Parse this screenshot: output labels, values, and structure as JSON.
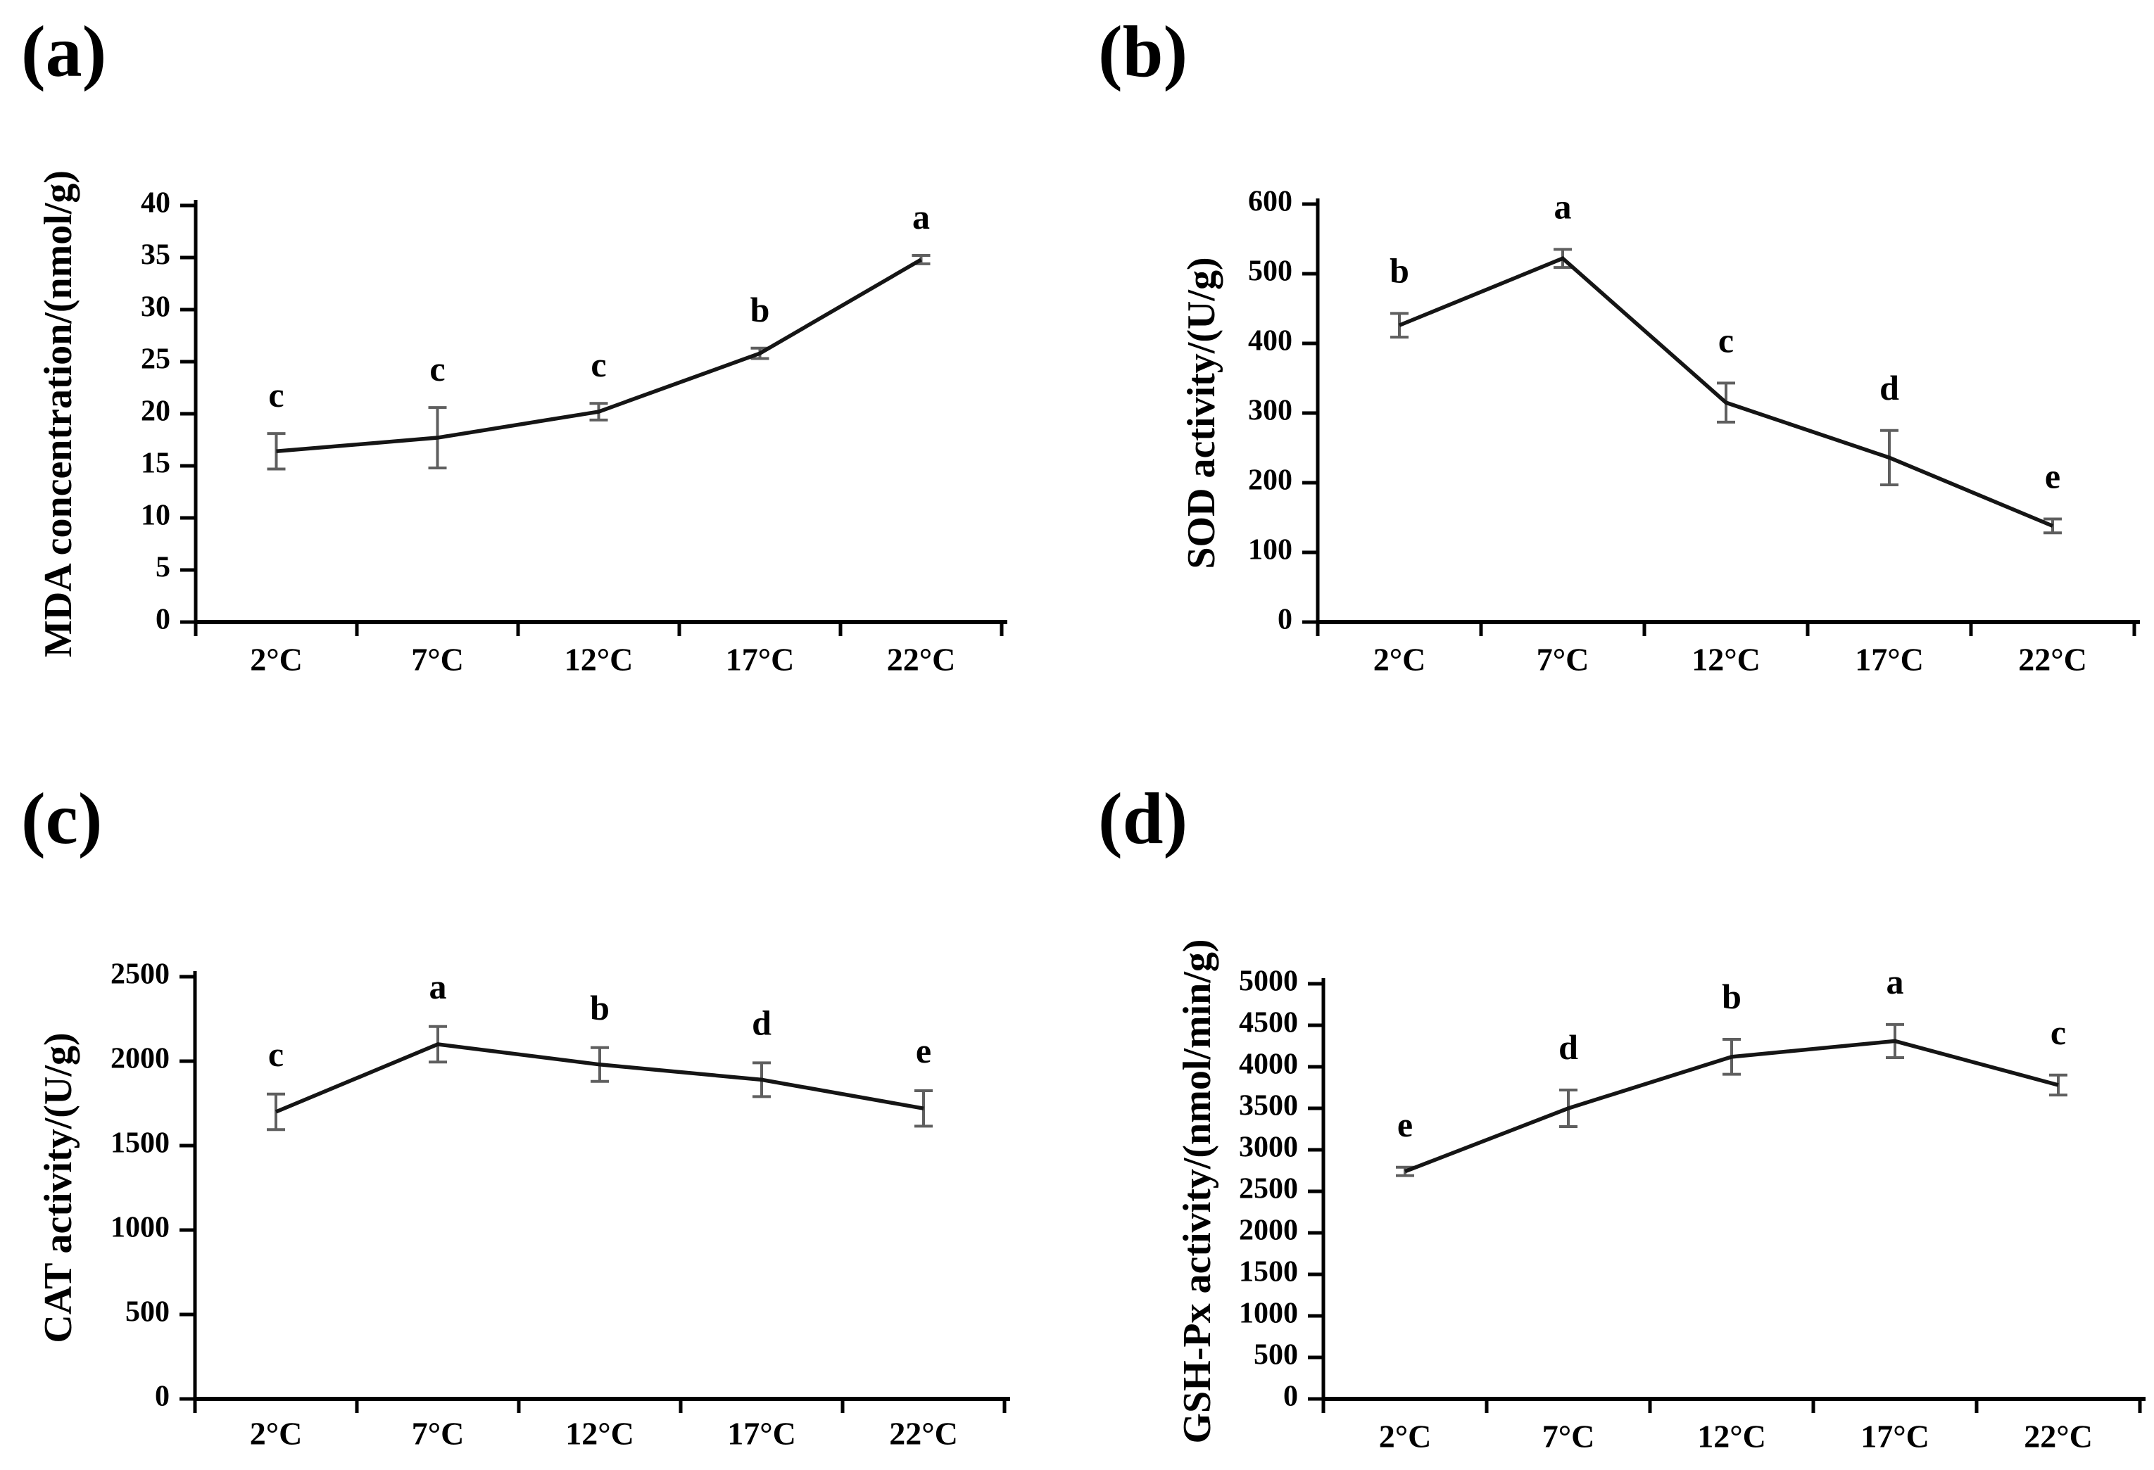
{
  "colors": {
    "background": "#ffffff",
    "axis": "#000000",
    "data_line": "#151515",
    "error_bar": "#5f5f5f",
    "text": "#000000"
  },
  "chart_data": [
    {
      "id": "a",
      "panel_label": "(a)",
      "type": "line",
      "title": "",
      "xlabel": "",
      "ylabel": "MDA concentration/(nmol/g)",
      "categories": [
        "2°C",
        "7°C",
        "12°C",
        "17°C",
        "22°C"
      ],
      "values": [
        16.4,
        17.7,
        20.2,
        25.8,
        34.8
      ],
      "errors": [
        1.7,
        2.9,
        0.8,
        0.5,
        0.4
      ],
      "sig_letters": [
        "c",
        "c",
        "c",
        "b",
        "a"
      ],
      "ylim": [
        0,
        40
      ],
      "ytick_step": 5,
      "yticks": [
        "0",
        "5",
        "10",
        "15",
        "20",
        "25",
        "30",
        "35",
        "40"
      ],
      "grid": "off",
      "legend": "none"
    },
    {
      "id": "b",
      "panel_label": "(b)",
      "type": "line",
      "title": "",
      "xlabel": "",
      "ylabel": "SOD activity/(U/g)",
      "categories": [
        "2°C",
        "7°C",
        "12°C",
        "17°C",
        "22°C"
      ],
      "values": [
        426,
        522,
        315,
        236,
        138
      ],
      "errors": [
        17,
        13,
        28,
        39,
        10
      ],
      "sig_letters": [
        "b",
        "a",
        "c",
        "d",
        "e"
      ],
      "ylim": [
        0,
        600
      ],
      "ytick_step": 100,
      "yticks": [
        "0",
        "100",
        "200",
        "300",
        "400",
        "500",
        "600"
      ],
      "grid": "off",
      "legend": "none"
    },
    {
      "id": "c",
      "panel_label": "(c)",
      "type": "line",
      "title": "",
      "xlabel": "",
      "ylabel": "CAT activity/(U/g)",
      "categories": [
        "2°C",
        "7°C",
        "12°C",
        "17°C",
        "22°C"
      ],
      "values": [
        1700,
        2100,
        1980,
        1890,
        1720
      ],
      "errors": [
        105,
        105,
        100,
        100,
        105
      ],
      "sig_letters": [
        "c",
        "a",
        "b",
        "d",
        "e"
      ],
      "ylim": [
        0,
        2500
      ],
      "ytick_step": 500,
      "yticks": [
        "0",
        "500",
        "1000",
        "1500",
        "2000",
        "2500"
      ],
      "grid": "off",
      "legend": "none"
    },
    {
      "id": "d",
      "panel_label": "(d)",
      "type": "line",
      "title": "",
      "xlabel": "",
      "ylabel": "GSH-Px activity/(nmol/min/g)",
      "categories": [
        "2°C",
        "7°C",
        "12°C",
        "17°C",
        "22°C"
      ],
      "values": [
        2740,
        3500,
        4120,
        4310,
        3780
      ],
      "errors": [
        50,
        220,
        210,
        200,
        120
      ],
      "sig_letters": [
        "e",
        "d",
        "b",
        "a",
        "c"
      ],
      "ylim": [
        0,
        5000
      ],
      "ytick_step": 500,
      "yticks": [
        "0",
        "500",
        "1000",
        "1500",
        "2000",
        "2500",
        "3000",
        "3500",
        "4000",
        "4500",
        "5000"
      ],
      "grid": "off",
      "legend": "none"
    }
  ]
}
